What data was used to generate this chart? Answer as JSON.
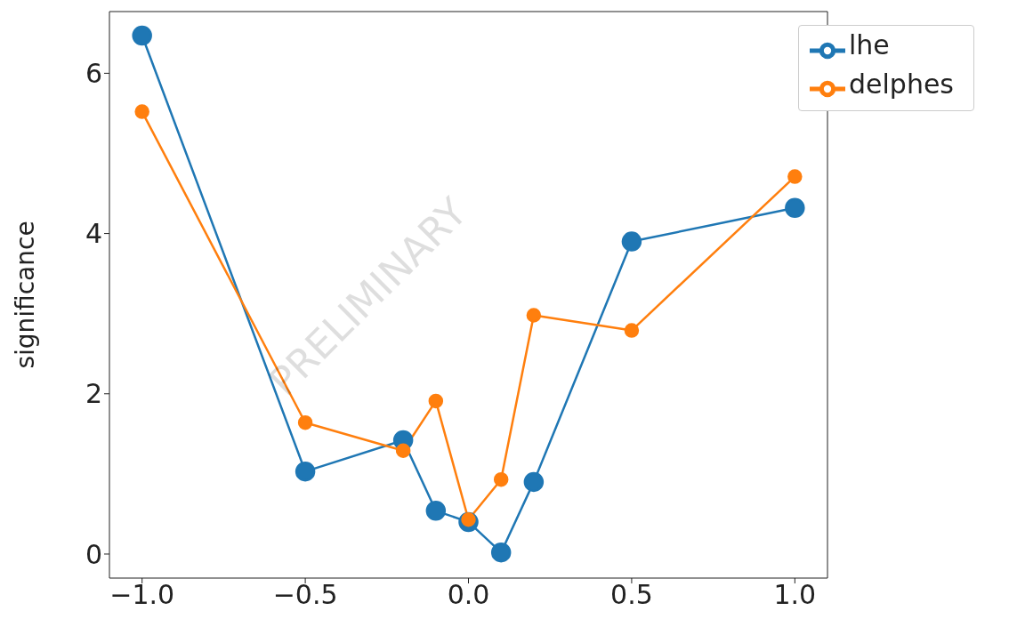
{
  "chart_data": {
    "type": "line",
    "ylabel": "significance",
    "x": [
      -1.0,
      -0.5,
      -0.2,
      -0.1,
      0.0,
      0.1,
      0.2,
      0.5,
      1.0
    ],
    "series": [
      {
        "name": "lhe",
        "color": "#1f77b4",
        "values": [
          6.47,
          1.03,
          1.42,
          0.54,
          0.4,
          0.02,
          0.9,
          3.9,
          4.32
        ]
      },
      {
        "name": "delphes",
        "color": "#ff7f0e",
        "values": [
          5.52,
          1.64,
          1.29,
          1.91,
          0.43,
          0.93,
          2.98,
          2.79,
          4.71
        ]
      }
    ],
    "xlim": [
      -1.1,
      1.1
    ],
    "xticks": [
      {
        "value": -1,
        "label": "−1.0"
      },
      {
        "value": -0.5,
        "label": "−0.5"
      },
      {
        "value": 0,
        "label": "0.0"
      },
      {
        "value": 0.5,
        "label": "0.5"
      },
      {
        "value": 1,
        "label": "1.0"
      }
    ],
    "ylim": [
      -0.3,
      6.77
    ],
    "yticks": [
      0,
      2,
      4,
      6
    ],
    "grid": false,
    "legend": "top right",
    "marker": "circle",
    "line_style": "solid",
    "annotations": [
      "PRELIMINARY"
    ]
  }
}
